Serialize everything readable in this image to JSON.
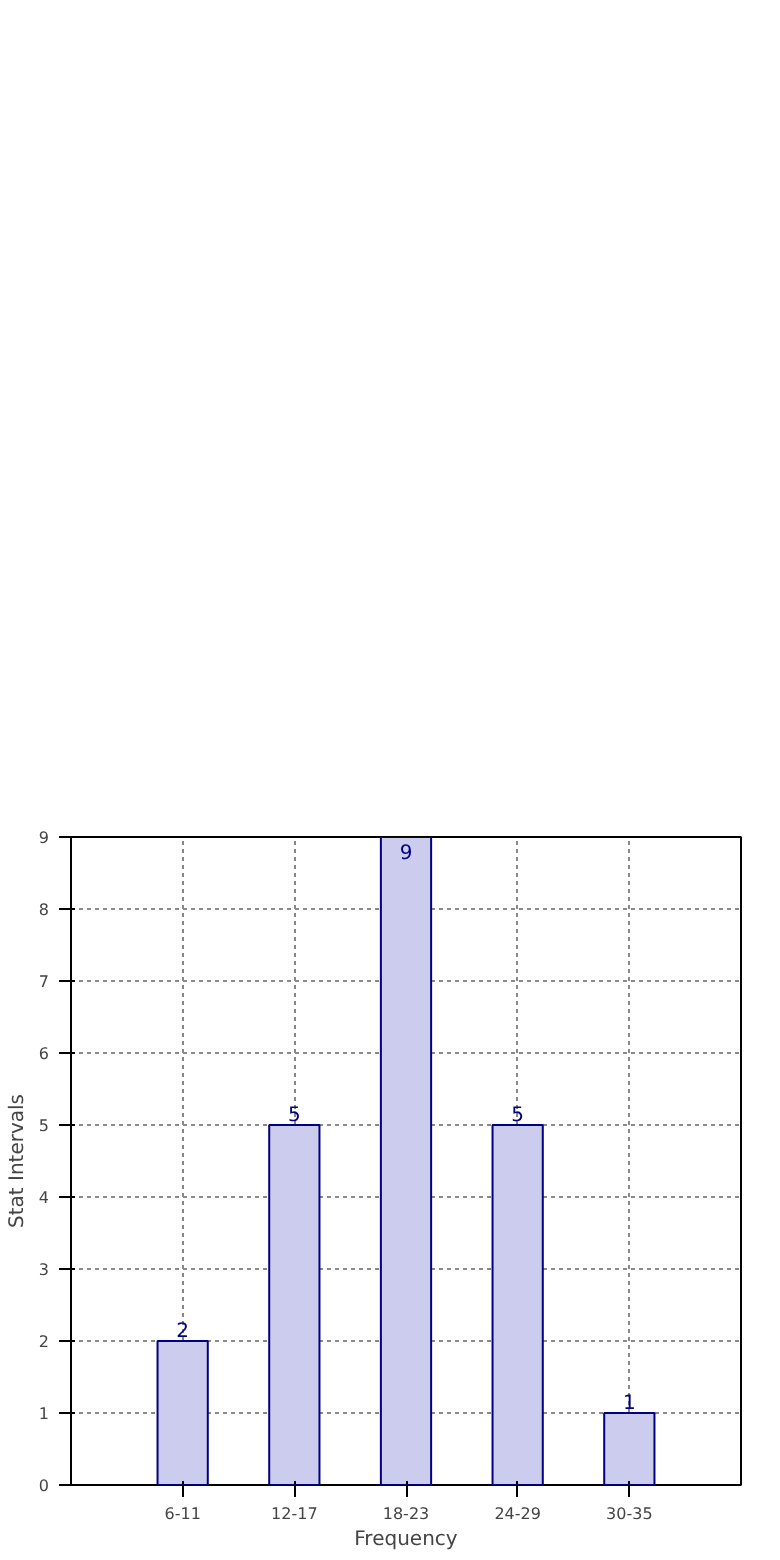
{
  "chart_data": {
    "type": "bar",
    "xlabel": "Frequency",
    "ylabel": "Stat Intervals",
    "categories": [
      "6-11",
      "12-17",
      "18-23",
      "24-29",
      "30-35"
    ],
    "values": [
      2,
      5,
      9,
      5,
      1
    ],
    "color": "#ccccee",
    "ylim": [
      0,
      9
    ],
    "yticks": [
      0,
      1,
      2,
      3,
      4,
      5,
      6,
      7,
      8,
      9
    ],
    "grid": true,
    "data_labels": true
  }
}
